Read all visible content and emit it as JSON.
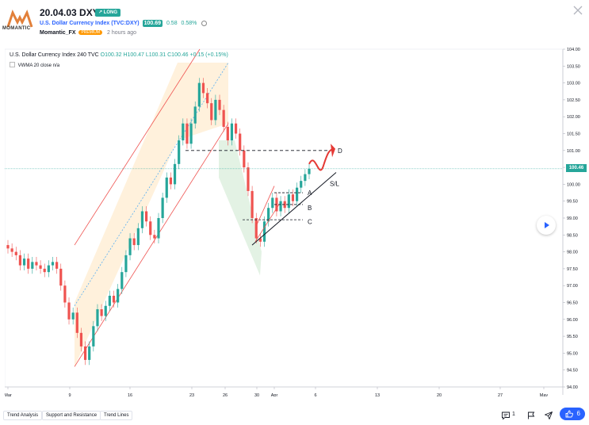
{
  "header": {
    "logo_text": "MOMANTIC",
    "title": "20.04.03 DXY",
    "badge": "LONG",
    "symbol_name": "U.S. Dollar Currency Index (TVC:DXY)",
    "price": "100.69",
    "change": "0.58",
    "change_pct": "0.58%",
    "author": "Momantic_FX",
    "author_badge": "PREMIUM",
    "time_ago": "2 hours ago"
  },
  "legend": {
    "main": "U.S. Dollar Currency Index  240  TVC",
    "ohlc": "O100.32  H100.47  L100.31  C100.46  +0.15 (+0.15%)",
    "vwma": "VWMA 20 close  n/a"
  },
  "chart_data": {
    "type": "candlestick",
    "y_axis_ticks": [
      "104.00",
      "103.50",
      "103.00",
      "102.50",
      "102.00",
      "101.50",
      "101.00",
      "100.50",
      "100.00",
      "99.50",
      "99.00",
      "98.50",
      "98.00",
      "97.50",
      "97.00",
      "96.50",
      "96.00",
      "95.50",
      "95.00",
      "94.50",
      "94.00"
    ],
    "x_axis_ticks": [
      "Mar",
      "9",
      "16",
      "23",
      "26",
      "30",
      "Apr",
      "6",
      "13",
      "20",
      "27",
      "May"
    ],
    "last_price": "100.46",
    "ylim": [
      94.0,
      104.0
    ],
    "annotations": [
      "A",
      "B",
      "C",
      "D",
      "S/L"
    ],
    "series": [
      {
        "values": [
          98.1,
          98.0,
          97.9,
          97.6,
          97.8,
          97.5,
          97.7,
          97.6,
          97.5,
          97.4,
          97.6,
          97.7,
          97.5,
          97.0,
          96.5,
          96.0,
          96.2,
          95.6,
          95.2,
          94.8,
          95.2,
          95.8,
          96.3,
          96.1,
          96.4,
          96.7,
          96.5,
          96.9,
          97.4,
          97.9,
          98.4,
          98.2,
          98.7,
          99.2,
          98.9,
          98.5,
          98.4,
          99.0,
          99.6,
          100.2,
          100.0,
          100.6,
          101.3,
          101.8,
          101.2,
          101.8,
          102.3,
          103.0,
          102.7,
          102.4,
          101.9,
          102.5,
          102.2,
          101.7,
          101.3,
          101.8,
          101.5,
          101.0,
          100.5,
          99.8,
          99.0,
          98.4,
          98.3,
          98.9,
          99.3,
          99.6,
          99.2,
          99.5,
          99.3,
          99.7,
          99.5,
          99.9,
          100.1,
          100.3,
          100.46
        ]
      }
    ]
  },
  "footer": {
    "tags": [
      "Trend Analysis",
      "Support and Resistance",
      "Trend Lines"
    ],
    "comments": "1",
    "likes": "6"
  },
  "colors": {
    "up": "#26a69a",
    "down": "#ef5350",
    "accent": "#2962ff"
  }
}
